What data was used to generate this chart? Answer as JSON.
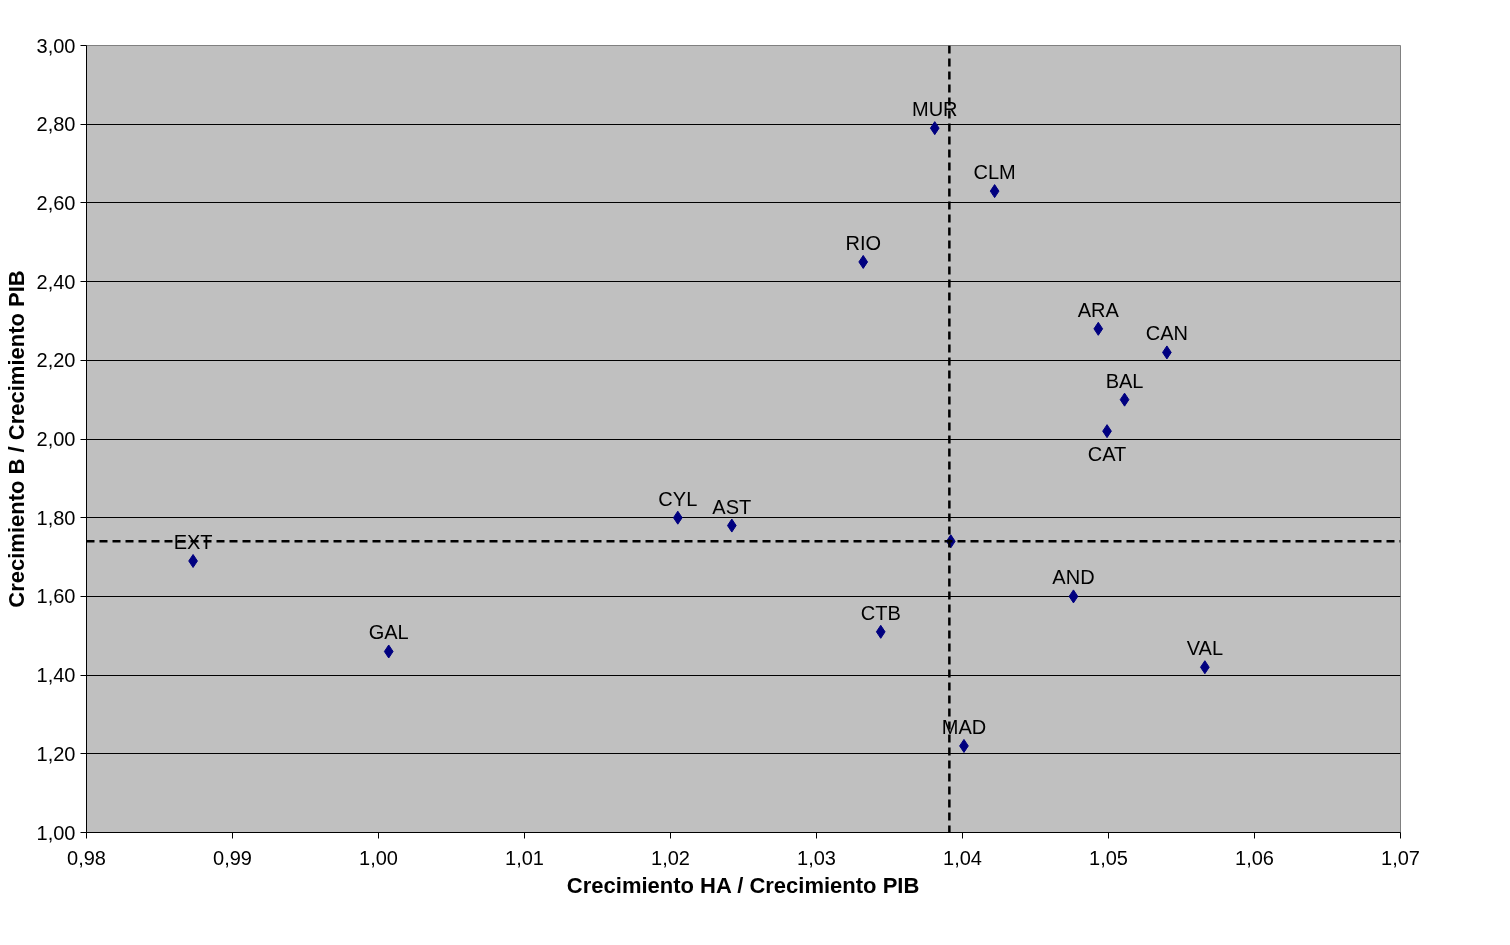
{
  "chart_data": {
    "type": "scatter",
    "xlabel": "Crecimiento HA / Crecimiento PIB",
    "ylabel": "Crecimiento B / Crecimiento PIB",
    "x": [
      1.0381,
      1.0422,
      1.0332,
      1.0493,
      1.054,
      1.0511,
      1.0499,
      1.0205,
      1.0242,
      0.9873,
      1.0392,
      1.0476,
      1.0007,
      1.0344,
      1.0566,
      1.0401
    ],
    "series": [
      {
        "color": "#000080",
        "values": [
          2.79,
          2.63,
          2.45,
          2.28,
          2.22,
          2.1,
          2.02,
          1.8,
          1.78,
          1.69,
          1.74,
          1.6,
          1.46,
          1.51,
          1.42,
          1.22
        ]
      }
    ],
    "marker": "diamond",
    "grid": "y",
    "xlim": [
      0.98,
      1.07
    ],
    "ylim": [
      1.0,
      3.0
    ],
    "xticks": [
      {
        "value": 0.98,
        "label": "0,98"
      },
      {
        "value": 0.99,
        "label": "0,99"
      },
      {
        "value": 1.0,
        "label": "1,00"
      },
      {
        "value": 1.01,
        "label": "1,01"
      },
      {
        "value": 1.02,
        "label": "1,02"
      },
      {
        "value": 1.03,
        "label": "1,03"
      },
      {
        "value": 1.04,
        "label": "1,04"
      },
      {
        "value": 1.05,
        "label": "1,05"
      },
      {
        "value": 1.06,
        "label": "1,06"
      },
      {
        "value": 1.07,
        "label": "1,07"
      }
    ],
    "yticks": [
      {
        "value": 1.0,
        "label": "1,00"
      },
      {
        "value": 1.2,
        "label": "1,20"
      },
      {
        "value": 1.4,
        "label": "1,40"
      },
      {
        "value": 1.6,
        "label": "1,60"
      },
      {
        "value": 1.8,
        "label": "1,80"
      },
      {
        "value": 2.0,
        "label": "2,00"
      },
      {
        "value": 2.2,
        "label": "2,20"
      },
      {
        "value": 2.4,
        "label": "2,40"
      },
      {
        "value": 2.6,
        "label": "2,60"
      },
      {
        "value": 2.8,
        "label": "2,80"
      },
      {
        "value": 3.0,
        "label": "3,00"
      }
    ],
    "ref_lines": [
      {
        "axis": "x",
        "value": 1.0391,
        "color": "#000000",
        "line_style": "dashed"
      },
      {
        "axis": "y",
        "value": 1.74,
        "color": "#000000",
        "line_style": "dashed"
      }
    ],
    "annotations": [
      {
        "text": "MUR",
        "x": 1.0381,
        "y": 2.79
      },
      {
        "text": "CLM",
        "x": 1.0422,
        "y": 2.63
      },
      {
        "text": "RIO",
        "x": 1.0332,
        "y": 2.45
      },
      {
        "text": "ARA",
        "x": 1.0493,
        "y": 2.28
      },
      {
        "text": "CAN",
        "x": 1.054,
        "y": 2.22
      },
      {
        "text": "BAL",
        "x": 1.0511,
        "y": 2.1
      },
      {
        "text": "CAT",
        "x": 1.0499,
        "y": 2.02
      },
      {
        "text": "CYL",
        "x": 1.0205,
        "y": 1.8
      },
      {
        "text": "AST",
        "x": 1.0242,
        "y": 1.78
      },
      {
        "text": "EXT",
        "x": 0.9873,
        "y": 1.69
      },
      {
        "text": "AND",
        "x": 1.0476,
        "y": 1.6
      },
      {
        "text": "GAL",
        "x": 1.0007,
        "y": 1.46
      },
      {
        "text": "CTB",
        "x": 1.0344,
        "y": 1.51
      },
      {
        "text": "VAL",
        "x": 1.0566,
        "y": 1.42
      },
      {
        "text": "MAD",
        "x": 1.0401,
        "y": 1.22
      }
    ]
  }
}
